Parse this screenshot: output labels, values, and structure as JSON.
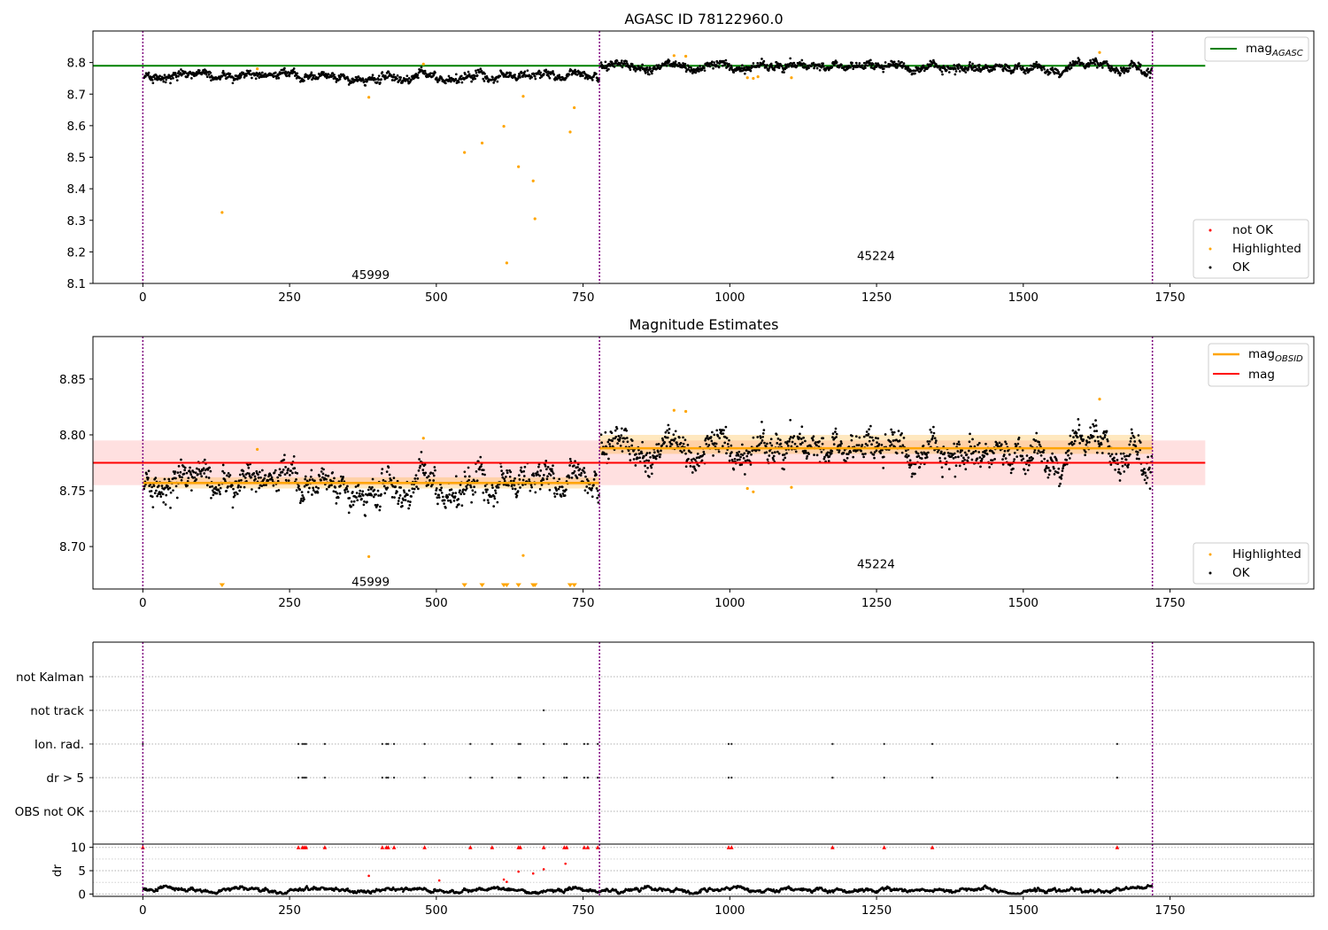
{
  "figure": {
    "background": "#ffffff",
    "colors": {
      "ok": "#000000",
      "highlighted": "#ffa500",
      "not_ok": "#ff0000",
      "agasc_line": "#008000",
      "mag_line": "#ff0000",
      "obsid_line": "#ffa500",
      "obs_boundary": "#800080"
    }
  },
  "chart_data": [
    {
      "id": "agasc",
      "type": "scatter",
      "title": "AGASC ID 78122960.0",
      "xlim": [
        -85,
        1995
      ],
      "ylim": [
        8.1,
        8.9
      ],
      "xticks": [
        0,
        250,
        500,
        750,
        1000,
        1250,
        1500,
        1750
      ],
      "yticks": [
        8.1,
        8.2,
        8.3,
        8.4,
        8.5,
        8.6,
        8.7,
        8.8
      ],
      "obs_boundaries": [
        0,
        778,
        1720
      ],
      "obs_labels": [
        {
          "text": "45999",
          "x": 388,
          "y": 8.125
        },
        {
          "text": "45224",
          "x": 1249,
          "y": 8.185
        }
      ],
      "hlines": [
        {
          "label": "mag",
          "subscript": "AGASC",
          "y": 8.79,
          "x0": -85,
          "x1": 1810,
          "color": "#008000"
        }
      ],
      "segments": [
        {
          "x0": 0,
          "x1": 778,
          "level": 8.756,
          "noise": 0.009
        },
        {
          "x0": 778,
          "x1": 1720,
          "level": 8.789,
          "noise": 0.009
        }
      ],
      "highlighted": [
        [
          135,
          8.325
        ],
        [
          195,
          8.78
        ],
        [
          385,
          8.69
        ],
        [
          478,
          8.795
        ],
        [
          548,
          8.515
        ],
        [
          578,
          8.545
        ],
        [
          615,
          8.598
        ],
        [
          620,
          8.165
        ],
        [
          640,
          8.47
        ],
        [
          648,
          8.693
        ],
        [
          665,
          8.425
        ],
        [
          668,
          8.305
        ],
        [
          728,
          8.58
        ],
        [
          735,
          8.657
        ],
        [
          905,
          8.822
        ],
        [
          925,
          8.82
        ],
        [
          1030,
          8.752
        ],
        [
          1040,
          8.75
        ],
        [
          1048,
          8.755
        ],
        [
          1105,
          8.752
        ],
        [
          1630,
          8.832
        ]
      ],
      "legend": {
        "position": "lower right",
        "entries": [
          "not OK",
          "Highlighted",
          "OK"
        ]
      }
    },
    {
      "id": "mag",
      "type": "scatter",
      "title": "Magnitude Estimates",
      "xlim": [
        -85,
        1995
      ],
      "ylim": [
        8.662,
        8.888
      ],
      "xticks": [
        0,
        250,
        500,
        750,
        1000,
        1250,
        1500,
        1750
      ],
      "yticks": [
        8.7,
        8.75,
        8.8,
        8.85
      ],
      "obs_boundaries": [
        0,
        778,
        1720
      ],
      "obs_labels": [
        {
          "text": "45999",
          "x": 388,
          "y": 8.668
        },
        {
          "text": "45224",
          "x": 1249,
          "y": 8.684
        }
      ],
      "mag_line": {
        "label": "mag",
        "y": 8.775,
        "band": [
          8.755,
          8.795
        ],
        "x0": -85,
        "x1": 1810
      },
      "obsid_lines": [
        {
          "label": "mag",
          "subscript": "OBSID",
          "x0": 0,
          "x1": 778,
          "y": 8.757,
          "band": [
            8.752,
            8.762
          ]
        },
        {
          "x0": 778,
          "x1": 1720,
          "y": 8.788,
          "band": [
            8.783,
            8.8
          ]
        }
      ],
      "segments": [
        {
          "x0": 0,
          "x1": 778,
          "level": 8.756,
          "noise": 0.009
        },
        {
          "x0": 778,
          "x1": 1720,
          "level": 8.789,
          "noise": 0.009
        }
      ],
      "highlighted": [
        [
          195,
          8.787
        ],
        [
          385,
          8.691
        ],
        [
          478,
          8.797
        ],
        [
          648,
          8.692
        ],
        [
          905,
          8.822
        ],
        [
          925,
          8.821
        ],
        [
          1030,
          8.752
        ],
        [
          1040,
          8.749
        ],
        [
          1105,
          8.753
        ],
        [
          1630,
          8.832
        ]
      ],
      "below_axis_markers": [
        135,
        548,
        578,
        615,
        620,
        640,
        665,
        668,
        728,
        735
      ],
      "legend_upper": {
        "position": "upper right",
        "entries": [
          {
            "label": "mag",
            "subscript": "OBSID"
          },
          {
            "label": "mag"
          }
        ]
      },
      "legend_lower": {
        "position": "lower right",
        "entries": [
          "Highlighted",
          "OK"
        ]
      }
    },
    {
      "id": "flags",
      "type": "scatter",
      "xlim": [
        -85,
        1995
      ],
      "categories": [
        "not Kalman",
        "not track",
        "Ion. rad.",
        "dr > 5",
        "OBS not OK"
      ],
      "obs_boundaries": [
        0,
        778,
        1720
      ],
      "flag_points": {
        "not track": [
          683
        ],
        "Ion. rad.": [
          0,
          265,
          272,
          275,
          278,
          310,
          408,
          415,
          418,
          428,
          480,
          558,
          595,
          640,
          643,
          683,
          718,
          722,
          752,
          758,
          775,
          998,
          1003,
          1175,
          1263,
          1345,
          1660
        ],
        "dr > 5": [
          0,
          265,
          272,
          275,
          278,
          310,
          408,
          415,
          418,
          428,
          480,
          558,
          595,
          640,
          643,
          683,
          718,
          722,
          752,
          758,
          775,
          998,
          1003,
          1175,
          1263,
          1345,
          1660
        ],
        "OBS not OK": []
      }
    },
    {
      "id": "dr",
      "type": "scatter",
      "ylabel": "dr",
      "xlim": [
        -85,
        1995
      ],
      "ylim": [
        -0.5,
        10.7
      ],
      "xticks": [
        0,
        250,
        500,
        750,
        1000,
        1250,
        1500,
        1750
      ],
      "yticks": [
        0,
        5,
        10
      ],
      "obs_boundaries": [
        0,
        778,
        1720
      ],
      "capped_red": [
        0,
        265,
        272,
        275,
        278,
        310,
        408,
        415,
        418,
        428,
        480,
        558,
        595,
        640,
        643,
        683,
        718,
        722,
        752,
        758,
        775,
        998,
        1003,
        1175,
        1263,
        1345,
        1660
      ],
      "red_points": [
        [
          385,
          3.9
        ],
        [
          505,
          2.9
        ],
        [
          615,
          3.1
        ],
        [
          620,
          2.6
        ],
        [
          640,
          4.8
        ],
        [
          665,
          4.4
        ],
        [
          683,
          5.3
        ],
        [
          720,
          6.5
        ]
      ],
      "baseline": {
        "x0": 0,
        "x1": 1720,
        "level": 0.8,
        "amplitude": 0.5
      }
    }
  ]
}
